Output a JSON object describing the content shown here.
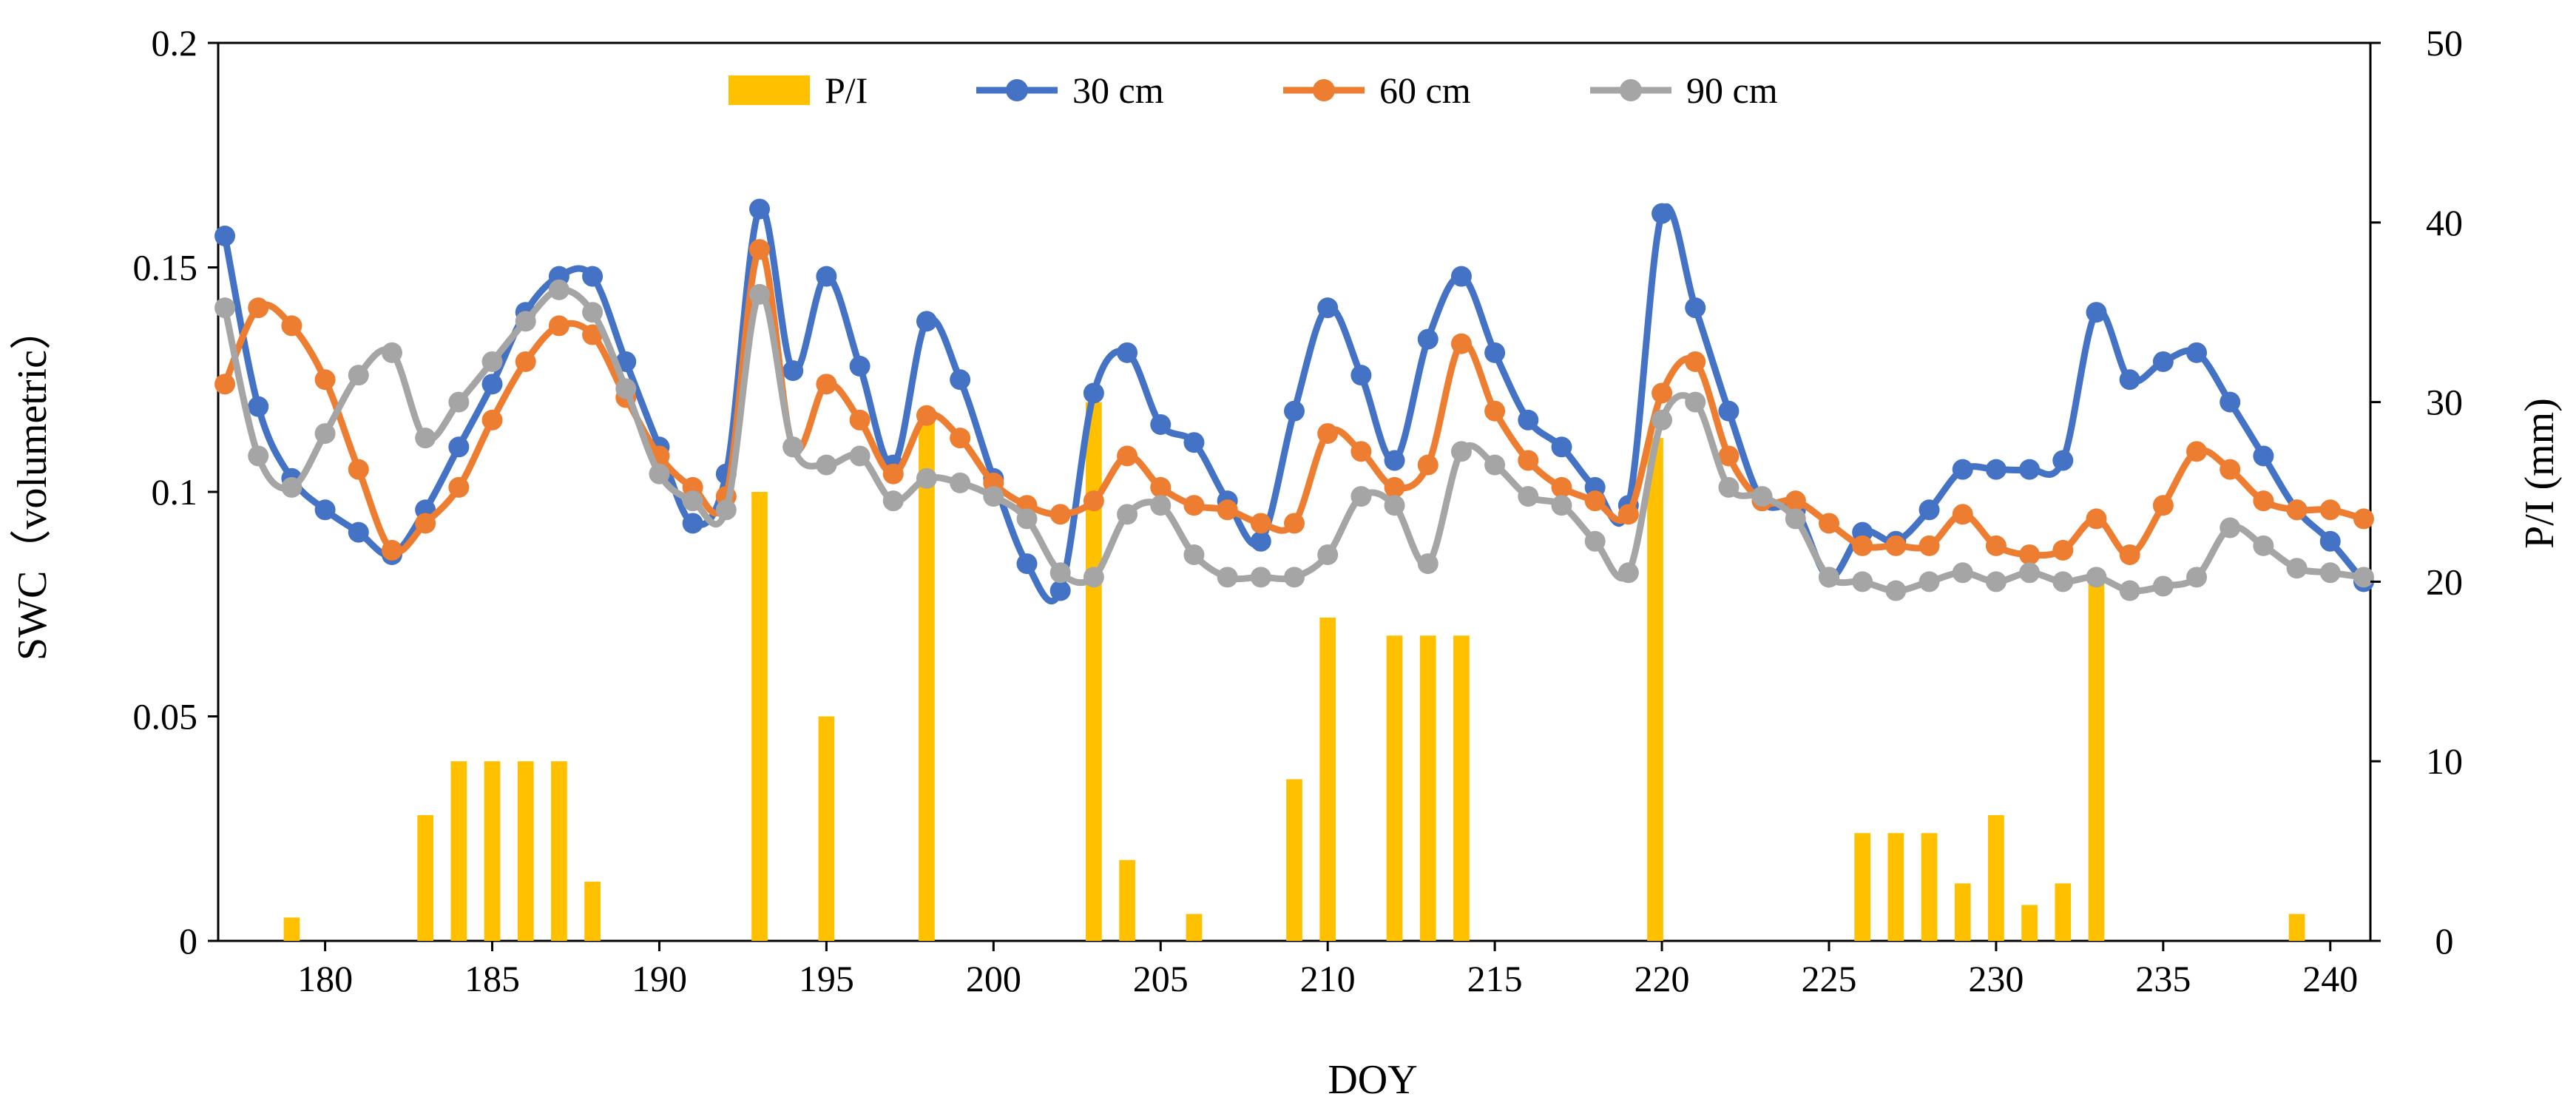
{
  "chart_data": {
    "type": "bar+line",
    "title": "",
    "xlabel": "DOY",
    "ylabel_left": "SWC（volumetric）",
    "ylabel_right": "P/I (mm)",
    "xlim": [
      176.8,
      241.2
    ],
    "ylim_left": [
      0,
      0.2
    ],
    "ylim_right": [
      0,
      50
    ],
    "x_ticks": [
      180,
      185,
      190,
      195,
      200,
      205,
      210,
      215,
      220,
      225,
      230,
      235,
      240
    ],
    "x_tick_labels": [
      "180",
      "185",
      "190",
      "195",
      "200",
      "205",
      "210",
      "215",
      "220",
      "225",
      "230",
      "235",
      "240"
    ],
    "y_left_ticks": [
      0,
      0.05,
      0.1,
      0.15,
      0.2
    ],
    "y_left_tick_labels": [
      "0",
      "0.05",
      "0.1",
      "0.15",
      "0.2"
    ],
    "y_right_ticks": [
      0,
      10,
      20,
      30,
      40,
      50
    ],
    "y_right_tick_labels": [
      "0",
      "10",
      "20",
      "30",
      "40",
      "50"
    ],
    "legend": {
      "position": "top-center",
      "entries": [
        "P/I",
        "30 cm",
        "60 cm",
        "90 cm"
      ]
    },
    "x": [
      177,
      178,
      179,
      180,
      181,
      182,
      183,
      184,
      185,
      186,
      187,
      188,
      189,
      190,
      191,
      192,
      193,
      194,
      195,
      196,
      197,
      198,
      199,
      200,
      201,
      202,
      203,
      204,
      205,
      206,
      207,
      208,
      209,
      210,
      211,
      212,
      213,
      214,
      215,
      216,
      217,
      218,
      219,
      220,
      221,
      222,
      223,
      224,
      225,
      226,
      227,
      228,
      229,
      230,
      231,
      232,
      233,
      234,
      235,
      236,
      237,
      238,
      239,
      240,
      241
    ],
    "series": [
      {
        "name": "30 cm",
        "axis": "left",
        "color": "#4472C4",
        "values": [
          0.157,
          0.119,
          0.103,
          0.096,
          0.091,
          0.086,
          0.096,
          0.11,
          0.124,
          0.14,
          0.148,
          0.148,
          0.129,
          0.11,
          0.093,
          0.104,
          0.163,
          0.127,
          0.148,
          0.128,
          0.106,
          0.138,
          0.125,
          0.103,
          0.084,
          0.078,
          0.122,
          0.131,
          0.115,
          0.111,
          0.098,
          0.089,
          0.118,
          0.141,
          0.126,
          0.107,
          0.134,
          0.148,
          0.131,
          0.116,
          0.11,
          0.101,
          0.097,
          0.162,
          0.141,
          0.118,
          0.098,
          0.096,
          0.081,
          0.091,
          0.089,
          0.096,
          0.105,
          0.105,
          0.105,
          0.107,
          0.14,
          0.125,
          0.129,
          0.131,
          0.12,
          0.108,
          0.096,
          0.089,
          0.08
        ]
      },
      {
        "name": "60 cm",
        "axis": "left",
        "color": "#ED7D31",
        "values": [
          0.124,
          0.141,
          0.137,
          0.125,
          0.105,
          0.087,
          0.093,
          0.101,
          0.116,
          0.129,
          0.137,
          0.135,
          0.121,
          0.108,
          0.101,
          0.099,
          0.154,
          0.11,
          0.124,
          0.116,
          0.104,
          0.117,
          0.112,
          0.102,
          0.097,
          0.095,
          0.098,
          0.108,
          0.101,
          0.097,
          0.096,
          0.093,
          0.093,
          0.113,
          0.109,
          0.101,
          0.106,
          0.133,
          0.118,
          0.107,
          0.101,
          0.098,
          0.095,
          0.122,
          0.129,
          0.108,
          0.098,
          0.098,
          0.093,
          0.088,
          0.088,
          0.088,
          0.095,
          0.088,
          0.086,
          0.087,
          0.094,
          0.086,
          0.097,
          0.109,
          0.105,
          0.098,
          0.096,
          0.096,
          0.094
        ]
      },
      {
        "name": "90 cm",
        "axis": "left",
        "color": "#A5A5A5",
        "values": [
          0.141,
          0.108,
          0.101,
          0.113,
          0.126,
          0.131,
          0.112,
          0.12,
          0.129,
          0.138,
          0.145,
          0.14,
          0.123,
          0.104,
          0.098,
          0.096,
          0.144,
          0.11,
          0.106,
          0.108,
          0.098,
          0.103,
          0.102,
          0.099,
          0.094,
          0.082,
          0.081,
          0.095,
          0.097,
          0.086,
          0.081,
          0.081,
          0.081,
          0.086,
          0.099,
          0.097,
          0.084,
          0.109,
          0.106,
          0.099,
          0.097,
          0.089,
          0.082,
          0.116,
          0.12,
          0.101,
          0.099,
          0.094,
          0.081,
          0.08,
          0.078,
          0.08,
          0.082,
          0.08,
          0.082,
          0.08,
          0.081,
          0.078,
          0.079,
          0.081,
          0.092,
          0.088,
          0.083,
          0.082,
          0.081
        ]
      }
    ],
    "bars": {
      "name": "P/I",
      "axis": "right",
      "color": "#FFC000",
      "x": [
        179,
        183,
        184,
        185,
        186,
        187,
        188,
        193,
        195,
        198,
        203,
        204,
        206,
        209,
        210,
        212,
        213,
        214,
        219.8,
        226,
        227,
        228,
        229,
        230,
        231,
        232,
        233,
        239
      ],
      "values": [
        1.3,
        7,
        10,
        10,
        10,
        10,
        3.3,
        25,
        12.5,
        29,
        30,
        4.5,
        1.5,
        9,
        18,
        17,
        17,
        17,
        28,
        6,
        6,
        6,
        3.2,
        7,
        2,
        3.2,
        20,
        1.5
      ]
    }
  }
}
